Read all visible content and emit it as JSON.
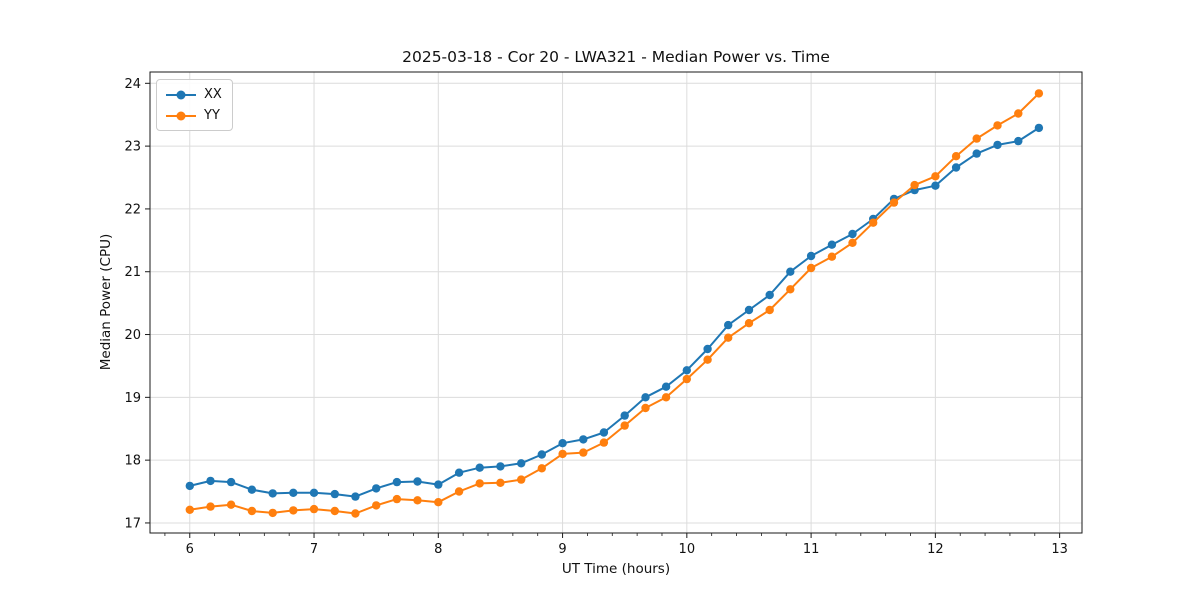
{
  "figure": {
    "background": "#ffffff"
  },
  "chart_data": {
    "type": "line",
    "title": "2025-03-18 - Cor 20 - LWA321 - Median Power vs. Time",
    "xlabel": "UT Time (hours)",
    "ylabel": "Median Power (CPU)",
    "xlim": [
      5.68,
      13.18
    ],
    "ylim": [
      16.84,
      24.18
    ],
    "x_ticks": [
      6,
      7,
      8,
      9,
      10,
      11,
      12,
      13
    ],
    "y_ticks": [
      17,
      18,
      19,
      20,
      21,
      22,
      23,
      24
    ],
    "x_minor_tick_step": 0.2,
    "grid": true,
    "grid_color": "#dcdcdc",
    "spine_color": "#1a1a1a",
    "legend_position": "upper-left",
    "marker": "circle",
    "x": [
      6.0,
      6.167,
      6.333,
      6.5,
      6.667,
      6.833,
      7.0,
      7.167,
      7.333,
      7.5,
      7.667,
      7.833,
      8.0,
      8.167,
      8.333,
      8.5,
      8.667,
      8.833,
      9.0,
      9.167,
      9.333,
      9.5,
      9.667,
      9.833,
      10.0,
      10.167,
      10.333,
      10.5,
      10.667,
      10.833,
      11.0,
      11.167,
      11.333,
      11.5,
      11.667,
      11.833,
      12.0,
      12.167,
      12.333,
      12.5,
      12.667,
      12.833
    ],
    "series": [
      {
        "name": "XX",
        "color": "#1f77b4",
        "values": [
          17.59,
          17.67,
          17.65,
          17.53,
          17.47,
          17.48,
          17.48,
          17.46,
          17.42,
          17.55,
          17.65,
          17.66,
          17.61,
          17.8,
          17.88,
          17.9,
          17.95,
          18.09,
          18.27,
          18.33,
          18.44,
          18.71,
          19.0,
          19.17,
          19.43,
          19.77,
          20.15,
          20.39,
          20.63,
          21.0,
          21.25,
          21.43,
          21.6,
          21.84,
          22.16,
          22.3,
          22.37,
          22.66,
          22.88,
          23.02,
          23.08,
          23.29
        ]
      },
      {
        "name": "YY",
        "color": "#ff7f0e",
        "values": [
          17.21,
          17.26,
          17.29,
          17.19,
          17.16,
          17.2,
          17.22,
          17.19,
          17.15,
          17.28,
          17.38,
          17.36,
          17.33,
          17.5,
          17.63,
          17.64,
          17.69,
          17.87,
          18.1,
          18.12,
          18.28,
          18.55,
          18.83,
          19.0,
          19.29,
          19.6,
          19.95,
          20.18,
          20.39,
          20.72,
          21.06,
          21.24,
          21.46,
          21.78,
          22.1,
          22.38,
          22.52,
          22.84,
          23.12,
          23.33,
          23.52,
          23.84
        ]
      }
    ]
  }
}
